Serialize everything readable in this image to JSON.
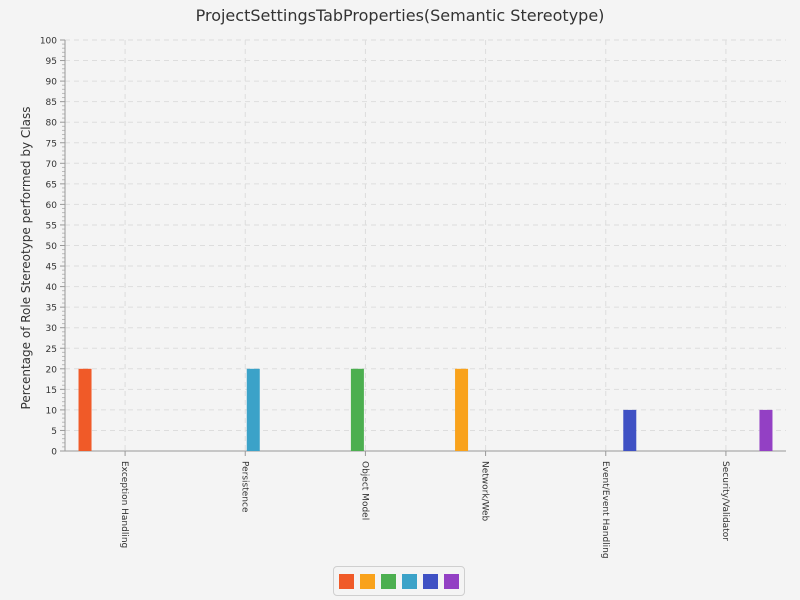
{
  "chart_data": {
    "type": "bar",
    "title": "ProjectSettingsTabProperties(Semantic Stereotype)",
    "ylabel": "Percentage of Role Stereotype performed by Class",
    "xlabel": "",
    "ylim": [
      0,
      100
    ],
    "ytick_step": 5,
    "grid": true,
    "legend_position": "bottom-center",
    "categories": [
      "Exception Handling",
      "Persistence",
      "Object Model",
      "Network/Web",
      "Event/Event Handling",
      "Security/Validator"
    ],
    "series": [
      {
        "values": [
          20,
          0,
          0,
          0,
          0,
          0
        ],
        "color": "#f05a28"
      },
      {
        "values": [
          0,
          0,
          0,
          20,
          0,
          0
        ],
        "color": "#f9a21b"
      },
      {
        "values": [
          0,
          0,
          20,
          0,
          0,
          0
        ],
        "color": "#4caf50"
      },
      {
        "values": [
          0,
          20,
          0,
          0,
          0,
          0
        ],
        "color": "#3ba2c8"
      },
      {
        "values": [
          0,
          0,
          0,
          0,
          10,
          0
        ],
        "color": "#3f51c4"
      },
      {
        "values": [
          0,
          0,
          0,
          0,
          0,
          10
        ],
        "color": "#9340c4"
      }
    ]
  }
}
